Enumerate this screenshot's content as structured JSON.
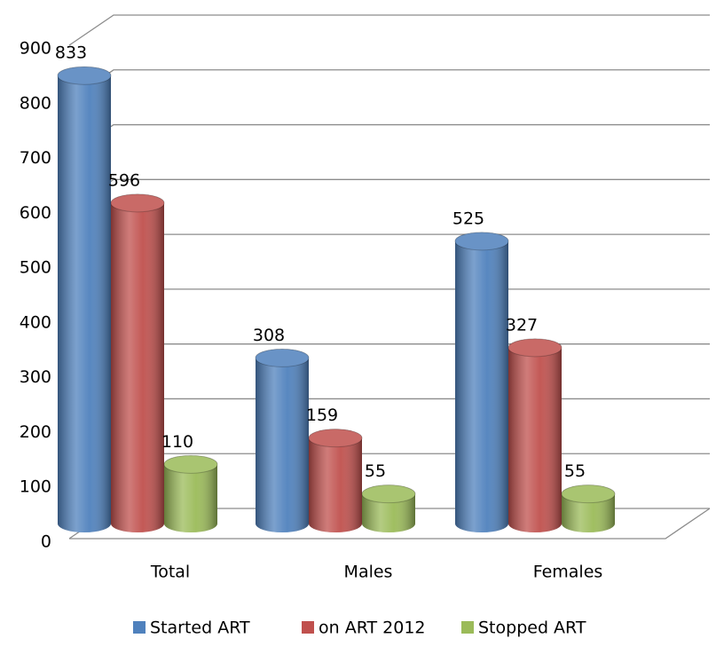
{
  "chart_data": {
    "type": "bar3d",
    "categories": [
      "Total",
      "Males",
      "Females"
    ],
    "series": [
      {
        "name": "Started ART",
        "color": "#4f81bd",
        "values": [
          833,
          308,
          525
        ]
      },
      {
        "name": "on ART 2012",
        "color": "#c0504d",
        "values": [
          596,
          159,
          327
        ]
      },
      {
        "name": "Stopped ART",
        "color": "#9bbb59",
        "values": [
          110,
          55,
          55
        ]
      }
    ],
    "ylim": [
      0,
      900
    ],
    "yticks": [
      0,
      100,
      200,
      300,
      400,
      500,
      600,
      700,
      800,
      900
    ],
    "grid": true,
    "legend": "bottom"
  }
}
